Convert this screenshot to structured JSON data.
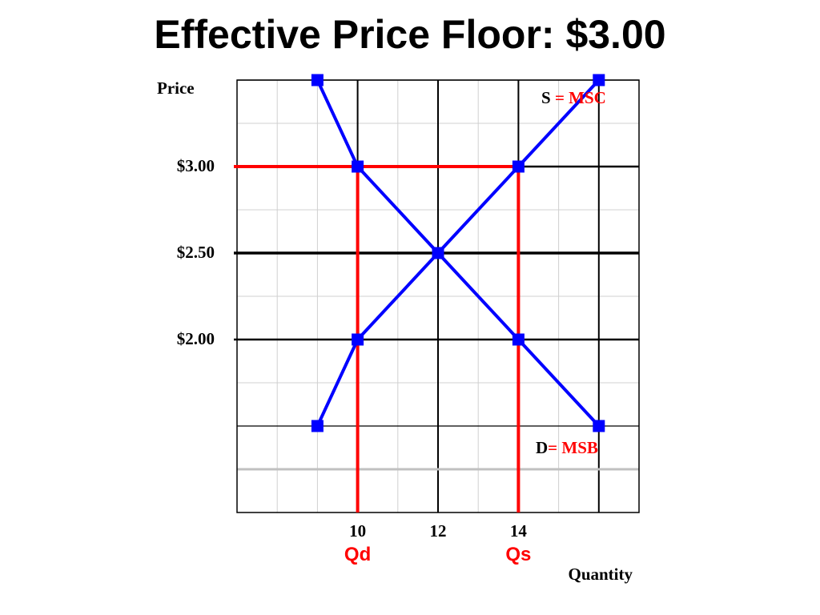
{
  "slide": {
    "title": "Effective Price Floor: $3.00"
  },
  "chart_data": {
    "type": "line",
    "title": "Effective Price Floor: $3.00",
    "xlabel": "Quantity",
    "ylabel": "Price",
    "xlim": [
      7,
      17
    ],
    "ylim": [
      1.0,
      3.5
    ],
    "grid": true,
    "y_ticks": [
      {
        "value": 3.0,
        "label": "$3.00"
      },
      {
        "value": 2.5,
        "label": "$2.50"
      },
      {
        "value": 2.0,
        "label": "$2.00"
      }
    ],
    "x_ticks": [
      {
        "value": 10,
        "label": "10"
      },
      {
        "value": 12,
        "label": "12"
      },
      {
        "value": 14,
        "label": "14"
      }
    ],
    "series": [
      {
        "name_parts": [
          "S",
          "= MSC"
        ],
        "color": "#0000ff",
        "x": [
          9,
          10,
          12,
          14,
          16
        ],
        "y": [
          1.5,
          2.0,
          2.5,
          3.0,
          3.5
        ]
      },
      {
        "name_parts": [
          "D",
          "= MSB"
        ],
        "color": "#0000ff",
        "x": [
          9,
          10,
          12,
          14,
          16
        ],
        "y": [
          3.5,
          3.0,
          2.5,
          2.0,
          1.5
        ]
      }
    ],
    "price_floor": {
      "value": 3.0,
      "color": "#ff0000",
      "qd": {
        "value": 10,
        "label": "Qd"
      },
      "qs": {
        "value": 14,
        "label": "Qs"
      }
    },
    "label_colors": {
      "curve_letter": "#000000",
      "curve_suffix": "#ff0000"
    }
  }
}
